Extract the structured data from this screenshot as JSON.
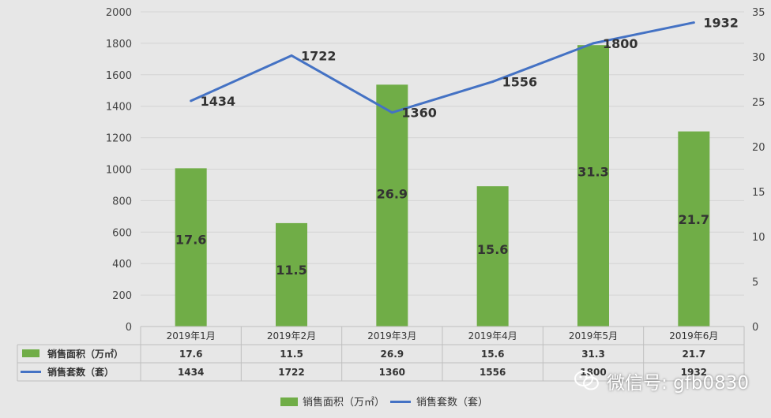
{
  "chart_data": {
    "type": "bar",
    "categories": [
      "2019年1月",
      "2019年2月",
      "2019年3月",
      "2019年4月",
      "2019年5月",
      "2019年6月"
    ],
    "series": [
      {
        "name": "销售面积（万㎡）",
        "type": "bar",
        "axis": "right",
        "values": [
          17.6,
          11.5,
          26.9,
          15.6,
          31.3,
          21.7
        ],
        "color": "#70ad47"
      },
      {
        "name": "销售套数（套）",
        "type": "line",
        "axis": "left",
        "values": [
          1434,
          1722,
          1360,
          1556,
          1800,
          1932
        ],
        "color": "#4472c4"
      }
    ],
    "left_axis": {
      "ylim": [
        0,
        2000
      ],
      "ticks": [
        0,
        200,
        400,
        600,
        800,
        1000,
        1200,
        1400,
        1600,
        1800,
        2000
      ]
    },
    "right_axis": {
      "ylim": [
        0,
        35
      ],
      "ticks": [
        0,
        5,
        10,
        15,
        20,
        25,
        30,
        35
      ]
    },
    "data_table": [
      {
        "name": "销售面积（万㎡）",
        "values": [
          "17.6",
          "11.5",
          "26.9",
          "15.6",
          "31.3",
          "21.7"
        ]
      },
      {
        "name": "销售套数（套）",
        "values": [
          "1434",
          "1722",
          "1360",
          "1556",
          "1800",
          "1932"
        ]
      }
    ],
    "legend": [
      "销售面积（万㎡）",
      "销售套数（套）"
    ],
    "legend_position": "bottom",
    "grid": true
  },
  "watermark": {
    "text": "微信号: gfb0830",
    "icon": "wechat-icon"
  }
}
